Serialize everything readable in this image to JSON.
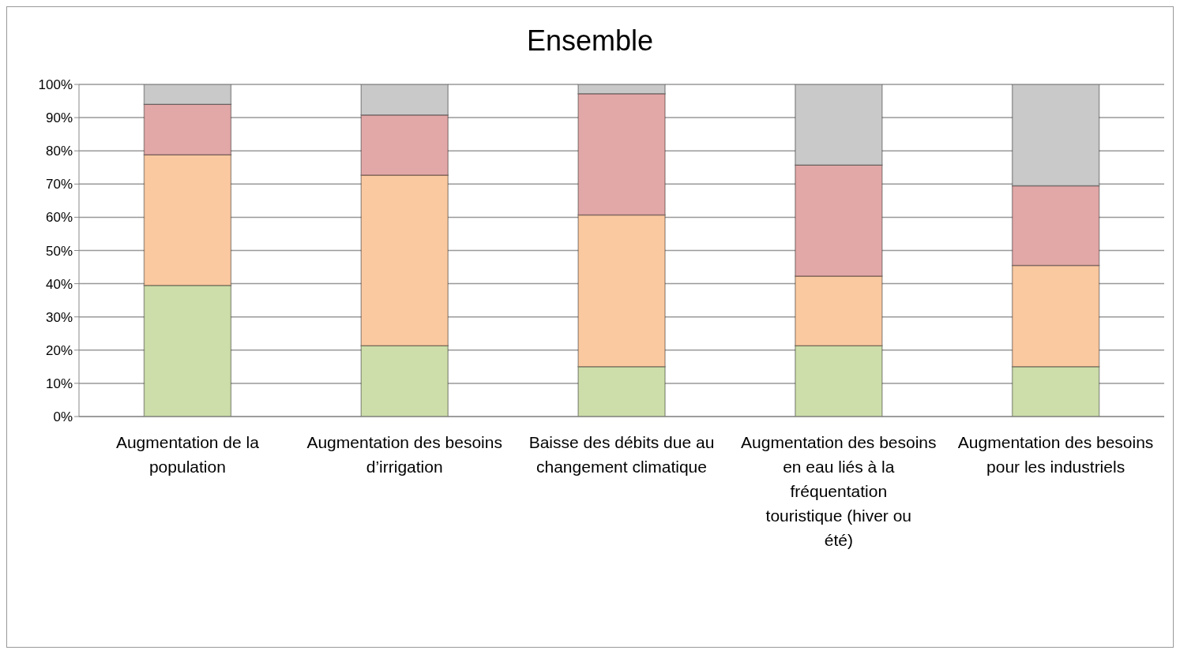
{
  "chart_data": {
    "type": "bar",
    "title": "Ensemble",
    "stacked": true,
    "categories": [
      "Augmentation de la population",
      "Augmentation des besoins d’irrigation",
      "Baisse des débits due au changement climatique",
      "Augmentation des besoins en eau liés à la fréquentation touristique (hiver ou été)",
      "Augmentation des besoins pour les industriels"
    ],
    "series": [
      {
        "color": "#cddeaa",
        "values": [
          39.5,
          21.3,
          15.0,
          21.3,
          15.0
        ]
      },
      {
        "color": "#fbc9a0",
        "values": [
          39.3,
          51.4,
          45.7,
          21.0,
          30.5
        ]
      },
      {
        "color": "#e2a8a7",
        "values": [
          15.2,
          18.1,
          36.5,
          33.4,
          24.0
        ]
      },
      {
        "color": "#c9c9c9",
        "values": [
          6.0,
          9.2,
          2.8,
          24.3,
          30.5
        ]
      }
    ],
    "ylim": [
      0,
      100
    ],
    "yticks": [
      {
        "value": 0,
        "label": "0%"
      },
      {
        "value": 10,
        "label": "10%"
      },
      {
        "value": 20,
        "label": "20%"
      },
      {
        "value": 30,
        "label": "30%"
      },
      {
        "value": 40,
        "label": "40%"
      },
      {
        "value": 50,
        "label": "50%"
      },
      {
        "value": 60,
        "label": "60%"
      },
      {
        "value": 70,
        "label": "70%"
      },
      {
        "value": 80,
        "label": "80%"
      },
      {
        "value": 90,
        "label": "90%"
      },
      {
        "value": 100,
        "label": "100%"
      }
    ],
    "grid": "y",
    "legend": false
  }
}
